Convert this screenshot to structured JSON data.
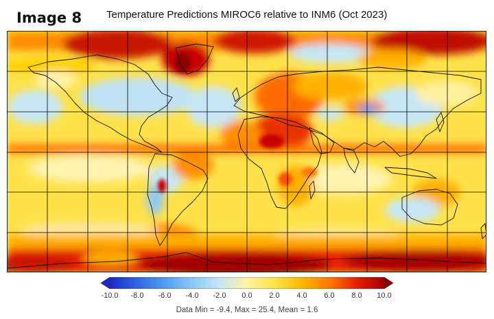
{
  "image_tag": "Image 8",
  "title": "Temperature Predictions MIROC6 relative to INM6 (Oct 2023)",
  "colorbar": {
    "ticks": [
      "-10.0",
      "-8.0",
      "-6.0",
      "-4.0",
      "-2.0",
      "0.0",
      "2.0",
      "4.0",
      "6.0",
      "8.0",
      "10.0"
    ],
    "stops": [
      {
        "value": -10,
        "color": "#1c28c8"
      },
      {
        "value": -8,
        "color": "#2f66e0"
      },
      {
        "value": -6,
        "color": "#4f9ef0"
      },
      {
        "value": -4,
        "color": "#8cc8f5"
      },
      {
        "value": -2,
        "color": "#c6e6f5"
      },
      {
        "value": 0,
        "color": "#fdf5a0"
      },
      {
        "value": 2,
        "color": "#ffe24a"
      },
      {
        "value": 4,
        "color": "#ffb700"
      },
      {
        "value": 6,
        "color": "#ff7a00"
      },
      {
        "value": 8,
        "color": "#e81e00"
      },
      {
        "value": 10,
        "color": "#a00000"
      }
    ],
    "low_arrow_color": "#1c28c8",
    "high_arrow_color": "#8b0000"
  },
  "stats": "Data Min = -9.4, Max = 25.4, Mean = 1.6"
}
